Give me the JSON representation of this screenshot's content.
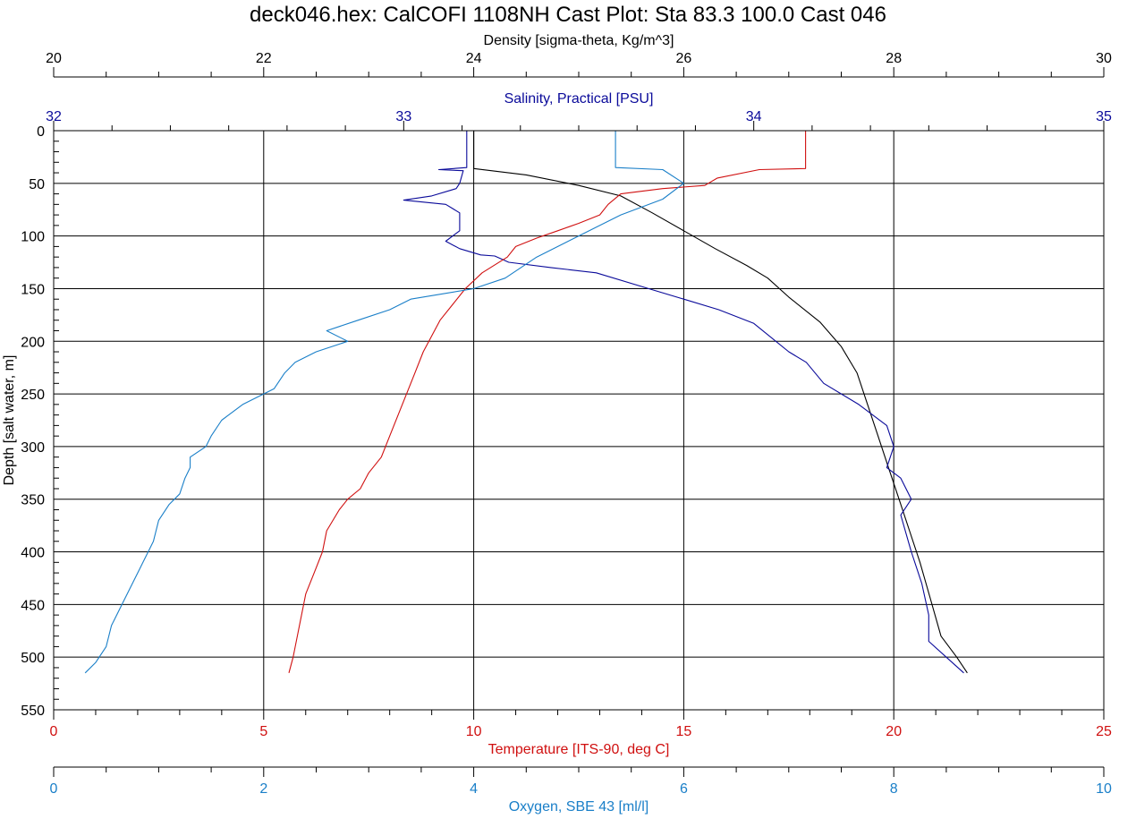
{
  "chart_data": {
    "type": "line",
    "title": "deck046.hex: CalCOFI 1108NH Cast Plot: Sta 83.3  100.0  Cast 046",
    "ylabel": "Depth [salt water, m]",
    "ylim": [
      0,
      550
    ],
    "yticks": [
      0,
      50,
      100,
      150,
      200,
      250,
      300,
      350,
      400,
      450,
      500,
      550
    ],
    "grid": true,
    "axes": [
      {
        "id": "density",
        "label": "Density [sigma-theta, Kg/m^3]",
        "position": "top",
        "range": [
          20,
          30
        ],
        "ticks": [
          20,
          22,
          24,
          26,
          28,
          30
        ],
        "color": "#000000"
      },
      {
        "id": "salinity",
        "label": "Salinity, Practical [PSU]",
        "position": "top",
        "range": [
          32,
          35
        ],
        "ticks": [
          32,
          33,
          34,
          35
        ],
        "color": "#0a0a9a"
      },
      {
        "id": "temperature",
        "label": "Temperature [ITS-90, deg C]",
        "position": "bottom",
        "range": [
          0,
          25
        ],
        "ticks": [
          0,
          5,
          10,
          15,
          20,
          25
        ],
        "color": "#d01010"
      },
      {
        "id": "oxygen",
        "label": "Oxygen, SBE 43 [ml/l]",
        "position": "bottom",
        "range": [
          0,
          10
        ],
        "ticks": [
          0,
          2,
          4,
          6,
          8,
          10
        ],
        "color": "#1a7fc8"
      }
    ],
    "series": [
      {
        "axis": "density",
        "color": "#000000",
        "points": [
          [
            24.0,
            0
          ],
          [
            24.0,
            36
          ],
          [
            24.5,
            42
          ],
          [
            25.0,
            52
          ],
          [
            25.4,
            62
          ],
          [
            25.7,
            78
          ],
          [
            26.0,
            95
          ],
          [
            26.3,
            112
          ],
          [
            26.6,
            128
          ],
          [
            26.8,
            140
          ],
          [
            27.0,
            158
          ],
          [
            27.3,
            182
          ],
          [
            27.5,
            205
          ],
          [
            27.65,
            230
          ],
          [
            27.75,
            260
          ],
          [
            27.85,
            290
          ],
          [
            27.95,
            320
          ],
          [
            28.05,
            350
          ],
          [
            28.15,
            380
          ],
          [
            28.25,
            410
          ],
          [
            28.35,
            445
          ],
          [
            28.45,
            480
          ],
          [
            28.6,
            500
          ],
          [
            28.7,
            515
          ]
        ]
      },
      {
        "axis": "salinity",
        "color": "#0a0a9a",
        "points": [
          [
            33.18,
            0
          ],
          [
            33.18,
            35
          ],
          [
            33.1,
            37
          ],
          [
            33.17,
            38
          ],
          [
            33.16,
            50
          ],
          [
            33.15,
            55
          ],
          [
            33.08,
            62
          ],
          [
            33.0,
            66
          ],
          [
            33.12,
            70
          ],
          [
            33.16,
            78
          ],
          [
            33.16,
            95
          ],
          [
            33.12,
            105
          ],
          [
            33.16,
            112
          ],
          [
            33.22,
            118
          ],
          [
            33.26,
            119
          ],
          [
            33.3,
            125
          ],
          [
            33.42,
            130
          ],
          [
            33.55,
            135
          ],
          [
            33.7,
            150
          ],
          [
            33.8,
            160
          ],
          [
            33.9,
            170
          ],
          [
            34.0,
            183
          ],
          [
            34.1,
            210
          ],
          [
            34.15,
            220
          ],
          [
            34.2,
            240
          ],
          [
            34.3,
            260
          ],
          [
            34.38,
            280
          ],
          [
            34.4,
            300
          ],
          [
            34.38,
            320
          ],
          [
            34.42,
            330
          ],
          [
            34.45,
            350
          ],
          [
            34.42,
            365
          ],
          [
            34.45,
            400
          ],
          [
            34.48,
            430
          ],
          [
            34.5,
            460
          ],
          [
            34.5,
            485
          ],
          [
            34.55,
            500
          ],
          [
            34.6,
            515
          ]
        ]
      },
      {
        "axis": "temperature",
        "color": "#d01010",
        "points": [
          [
            17.9,
            0
          ],
          [
            17.9,
            36
          ],
          [
            16.8,
            37
          ],
          [
            15.8,
            45
          ],
          [
            15.5,
            52
          ],
          [
            14.5,
            55
          ],
          [
            13.5,
            60
          ],
          [
            13.2,
            70
          ],
          [
            13.0,
            80
          ],
          [
            12.5,
            88
          ],
          [
            12.0,
            95
          ],
          [
            11.5,
            102
          ],
          [
            11.0,
            110
          ],
          [
            10.8,
            120
          ],
          [
            10.2,
            135
          ],
          [
            9.8,
            150
          ],
          [
            9.5,
            165
          ],
          [
            9.2,
            180
          ],
          [
            9.0,
            195
          ],
          [
            8.8,
            210
          ],
          [
            8.6,
            230
          ],
          [
            8.4,
            250
          ],
          [
            8.2,
            270
          ],
          [
            8.0,
            290
          ],
          [
            7.8,
            310
          ],
          [
            7.5,
            325
          ],
          [
            7.3,
            340
          ],
          [
            7.0,
            350
          ],
          [
            6.8,
            360
          ],
          [
            6.5,
            380
          ],
          [
            6.4,
            400
          ],
          [
            6.2,
            420
          ],
          [
            6.0,
            440
          ],
          [
            5.9,
            460
          ],
          [
            5.8,
            480
          ],
          [
            5.7,
            500
          ],
          [
            5.6,
            515
          ]
        ]
      },
      {
        "axis": "oxygen",
        "color": "#1a7fc8",
        "points": [
          [
            5.35,
            0
          ],
          [
            5.35,
            35
          ],
          [
            5.8,
            37
          ],
          [
            6.0,
            50
          ],
          [
            5.8,
            65
          ],
          [
            5.4,
            80
          ],
          [
            5.0,
            100
          ],
          [
            4.6,
            120
          ],
          [
            4.3,
            140
          ],
          [
            4.0,
            150
          ],
          [
            3.4,
            160
          ],
          [
            3.2,
            170
          ],
          [
            2.9,
            180
          ],
          [
            2.6,
            190
          ],
          [
            2.8,
            200
          ],
          [
            2.5,
            210
          ],
          [
            2.3,
            220
          ],
          [
            2.2,
            230
          ],
          [
            2.1,
            245
          ],
          [
            1.8,
            260
          ],
          [
            1.6,
            275
          ],
          [
            1.5,
            290
          ],
          [
            1.45,
            300
          ],
          [
            1.3,
            310
          ],
          [
            1.3,
            320
          ],
          [
            1.25,
            330
          ],
          [
            1.2,
            345
          ],
          [
            1.1,
            355
          ],
          [
            1.0,
            370
          ],
          [
            0.95,
            390
          ],
          [
            0.85,
            410
          ],
          [
            0.75,
            430
          ],
          [
            0.65,
            450
          ],
          [
            0.55,
            470
          ],
          [
            0.5,
            490
          ],
          [
            0.4,
            505
          ],
          [
            0.3,
            515
          ]
        ]
      }
    ]
  }
}
